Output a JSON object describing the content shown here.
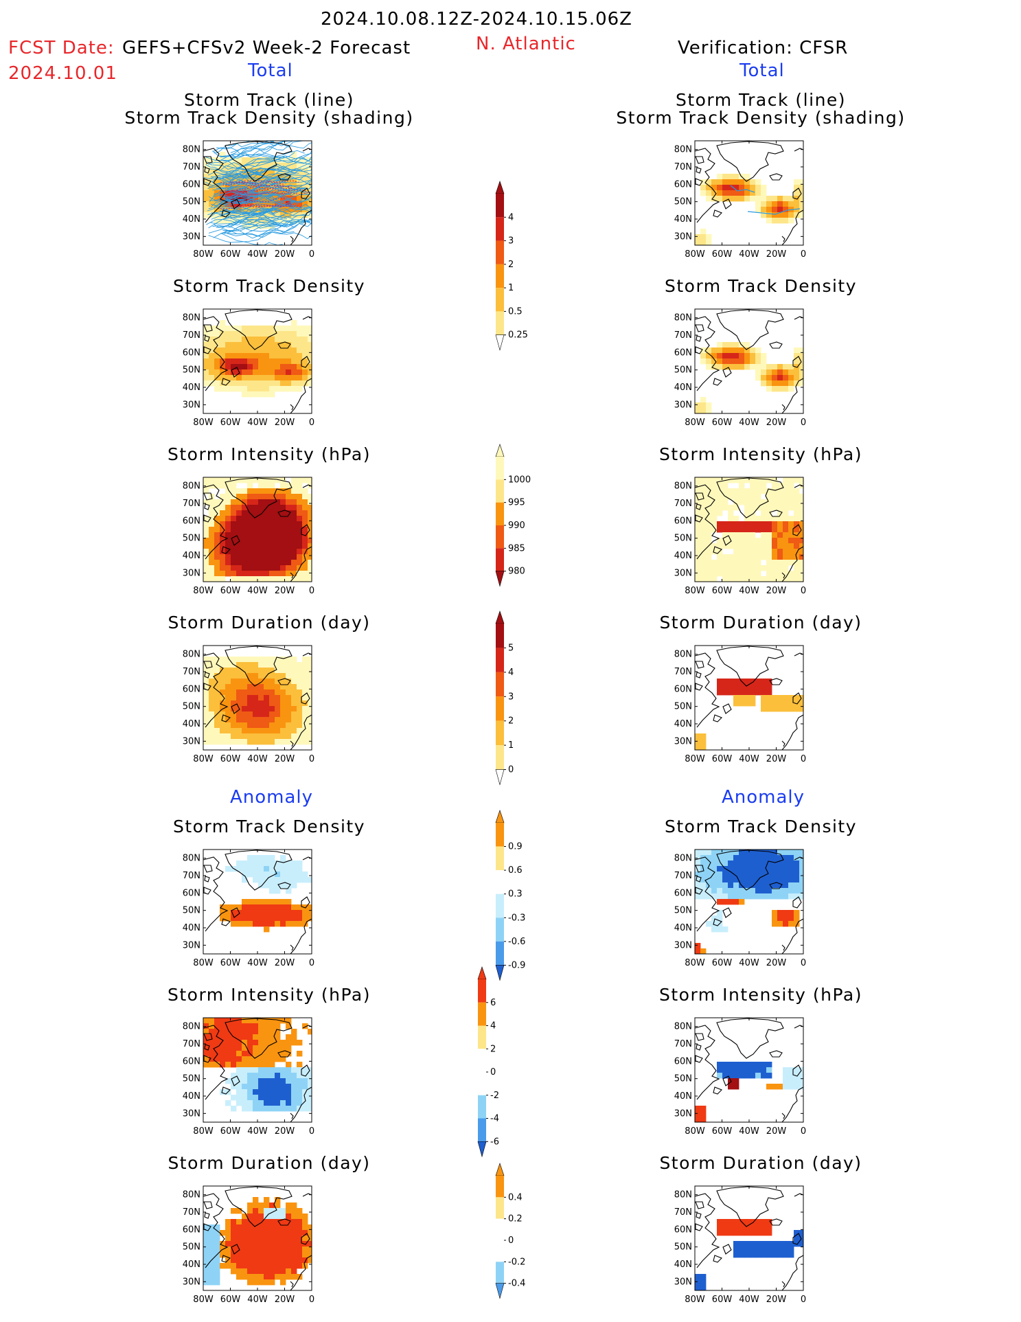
{
  "header": {
    "valid_period": "2024.10.08.12Z-2024.10.15.06Z",
    "fcst_date_label": "FCST Date:",
    "fcst_model": "GEFS+CFSv2 Week-2 Forecast",
    "fcst_date": "2024.10.01",
    "region": "N. Atlantic",
    "verification": "Verification: CFSR"
  },
  "sections": {
    "total_left": "Total",
    "total_right": "Total",
    "anomaly_left": "Anomaly",
    "anomaly_right": "Anomaly"
  },
  "panel_titles": {
    "track_line": "Storm Track (line)",
    "track_density_shading": "Storm Track Density (shading)",
    "track_density": "Storm Track Density",
    "intensity": "Storm Intensity (hPa)",
    "duration": "Storm Duration (day)"
  },
  "map_axes": {
    "lat_ticks": [
      "80N",
      "70N",
      "60N",
      "50N",
      "40N",
      "30N"
    ],
    "lon_ticks": [
      "80W",
      "60W",
      "40W",
      "20W",
      "0"
    ]
  },
  "colorbars": [
    {
      "name": "track-density",
      "labels": [
        "4",
        "3",
        "2",
        "1",
        "0.5",
        "0.25"
      ],
      "palette": "warm"
    },
    {
      "name": "intensity",
      "labels": [
        "1000",
        "995",
        "990",
        "985",
        "980"
      ],
      "palette": "warm_rev"
    },
    {
      "name": "duration",
      "labels": [
        "5",
        "4",
        "3",
        "2",
        "1",
        "0"
      ],
      "palette": "warm"
    },
    {
      "name": "density-anomaly",
      "labels": [
        "0.9",
        "0.6",
        "0.3",
        "-0.3",
        "-0.6",
        "-0.9"
      ],
      "palette": "div"
    },
    {
      "name": "intensity-anomaly",
      "labels": [
        "6",
        "4",
        "2",
        "0",
        "-2",
        "-4",
        "-6"
      ],
      "palette": "div"
    },
    {
      "name": "duration-anomaly",
      "labels": [
        "0.4",
        "0.2",
        "0",
        "-0.2",
        "-0.4"
      ],
      "palette": "div"
    }
  ],
  "colors": {
    "warm_levels": [
      "#fff8bb",
      "#fde68a",
      "#fbbf3c",
      "#f99410",
      "#ef5a14",
      "#d6261a",
      "#a30f12"
    ],
    "cool_levels": [
      "#c8eefc",
      "#8ed3f6",
      "#4a9bea",
      "#1e5fd0"
    ],
    "track_lines": "#2a9be0",
    "track_center_lines": "#b8306c",
    "coast": "#000000",
    "title_red": "#e8262a",
    "title_blue": "#1a3cf0"
  }
}
